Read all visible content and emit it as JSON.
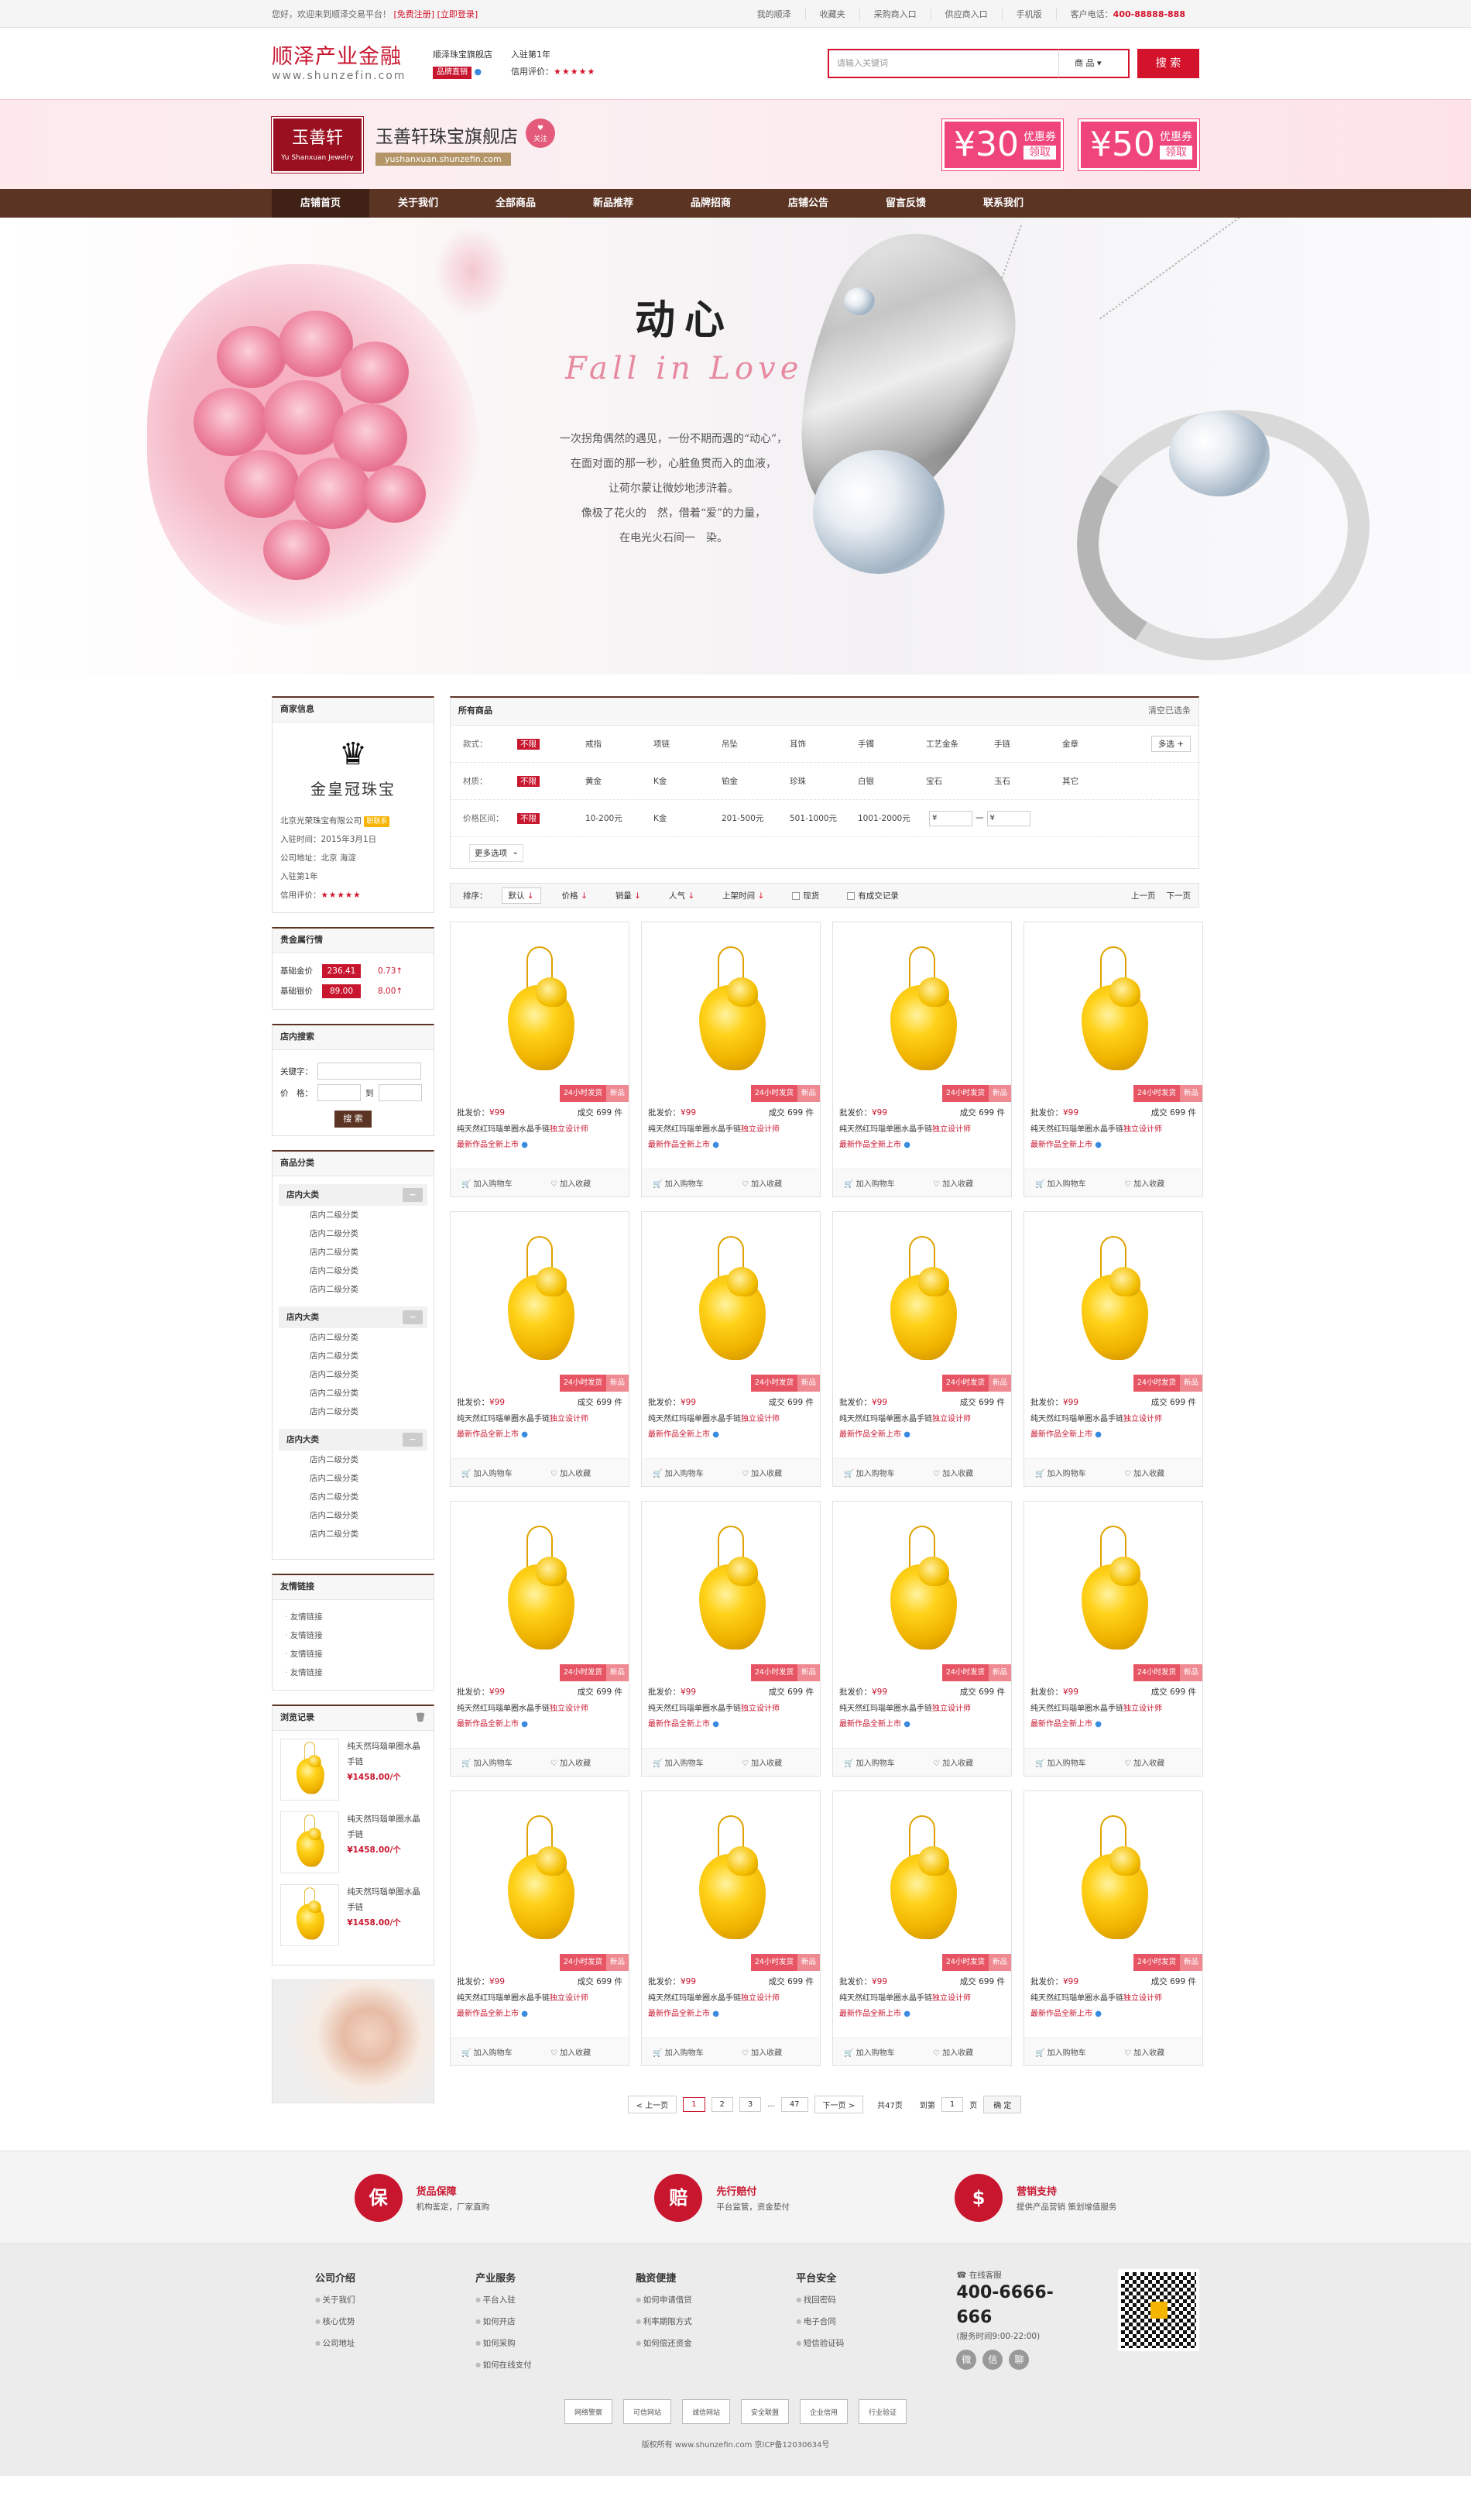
{
  "topbar": {
    "welcome": "您好，欢迎来到顺泽交易平台！",
    "register": "[免费注册]",
    "login": "[立即登录]",
    "links": [
      "我的顺泽",
      "收藏夹",
      "采购商入口",
      "供应商入口",
      "手机版"
    ],
    "phone_label": "客户电话：",
    "phone": "400-88888-888"
  },
  "header": {
    "logo_cn": "顺泽产业金融",
    "logo_en": "www.shunzefin.com",
    "shop_title": "顺泽珠宝旗舰店",
    "shop_badge": "品牌直销",
    "joined": "入驻第1年",
    "rating_label": "信用评价：",
    "stars": "★★★★★",
    "search_placeholder": "请输入关键词",
    "search_type": "商 品",
    "search_button": "搜 索"
  },
  "shop": {
    "logo_cn": "玉善轩",
    "logo_en": "Yu Shanxuan Jewelry",
    "name": "玉善轩珠宝旗舰店",
    "url": "yushanxuan.shunzefin.com",
    "follow": "关注",
    "coupons": [
      {
        "amount": "¥30",
        "label": "优惠券",
        "get": "领取"
      },
      {
        "amount": "¥50",
        "label": "优惠券",
        "get": "领取"
      }
    ]
  },
  "nav": [
    "店铺首页",
    "关于我们",
    "全部商品",
    "新品推荐",
    "品牌招商",
    "店铺公告",
    "留言反馈",
    "联系我们"
  ],
  "hero": {
    "title": "动心",
    "subtitle": "Fall in Love",
    "poem": [
      "一次拐角偶然的遇见，一份不期而遇的“动心”，",
      "在面对面的那一秒，心脏鱼贯而入的血液，",
      "让荷尔蒙让微妙地涉浒着。",
      "像极了花火的　然，借着“爱”的力量，",
      "在电光火石间一　染。"
    ]
  },
  "merchant": {
    "title": "商家信息",
    "brand": "金皇冠珠宝",
    "company": "北京光荣珠宝有限公司",
    "tag": "职联系",
    "joined_date": "入驻时间：2015年3月1日",
    "address": "公司地址：北京 海淀",
    "years": "入驻第1年",
    "rating_label": "信用评价：",
    "stars": "★★★★★"
  },
  "metals": {
    "title": "贵金属行情",
    "rows": [
      {
        "label": "基础金价",
        "value": "236.41",
        "delta": "0.73↑"
      },
      {
        "label": "基础银价",
        "value": "89.00",
        "delta": "8.00↑"
      }
    ]
  },
  "store_search": {
    "title": "店内搜索",
    "keyword_label": "关键字：",
    "price_label": "价　格：",
    "to": "到",
    "button": "搜 索"
  },
  "categories": {
    "title": "商品分类",
    "groups": [
      {
        "name": "店内大类",
        "items": [
          "店内二级分类",
          "店内二级分类",
          "店内二级分类",
          "店内二级分类",
          "店内二级分类"
        ]
      },
      {
        "name": "店内大类",
        "items": [
          "店内二级分类",
          "店内二级分类",
          "店内二级分类",
          "店内二级分类",
          "店内二级分类"
        ]
      },
      {
        "name": "店内大类",
        "items": [
          "店内二级分类",
          "店内二级分类",
          "店内二级分类",
          "店内二级分类",
          "店内二级分类"
        ]
      }
    ]
  },
  "friend_links": {
    "title": "友情链接",
    "items": [
      "友情链接",
      "友情链接",
      "友情链接",
      "友情链接"
    ]
  },
  "history": {
    "title": "浏览记录",
    "items": [
      {
        "name": "纯天然玛瑙单圈水晶手链",
        "price": "¥1458.00/个"
      },
      {
        "name": "纯天然玛瑙单圈水晶手链",
        "price": "¥1458.00/个"
      },
      {
        "name": "纯天然玛瑙单圈水晶手链",
        "price": "¥1458.00/个"
      }
    ]
  },
  "filter": {
    "title": "所有商品",
    "clear": "清空已选条",
    "rows": [
      {
        "label": "款式：",
        "options": [
          "不限",
          "戒指",
          "项链",
          "吊坠",
          "耳饰",
          "手镯",
          "工艺金条",
          "手链",
          "金章"
        ],
        "more": "多选 +"
      },
      {
        "label": "材质：",
        "options": [
          "不限",
          "黄金",
          "K金",
          "铂金",
          "珍珠",
          "白银",
          "宝石",
          "玉石",
          "其它"
        ]
      },
      {
        "label": "价格区间：",
        "options": [
          "不限",
          "10-200元",
          "K金",
          "201-500元",
          "501-1000元",
          "1001-2000元"
        ],
        "price_from": "¥",
        "price_to": "¥",
        "dash": "一"
      }
    ],
    "more_options": "更多选项"
  },
  "sort": {
    "label": "排序：",
    "items": [
      "默认",
      "价格",
      "销量",
      "人气",
      "上架时间"
    ],
    "arrows": [
      "↓",
      "↓",
      "↓",
      "↓",
      "↓"
    ],
    "check1": "现货",
    "check2": "有成交记录",
    "prev": "上一页",
    "next": "下一页"
  },
  "products": {
    "count": 16,
    "price_label": "批发价：",
    "price": "¥99",
    "sold": "成交 699 件",
    "promo1": "24小时发货",
    "promo2": "新品",
    "desc": "纯天然红玛瑙单圈水晶手链",
    "desc_em": "独立设计师",
    "desc2": "最新作品全新上市",
    "add_cart": "加入购物车",
    "favorite": "加入收藏"
  },
  "pager": {
    "prev": "< 上一页",
    "pages": [
      "1",
      "2",
      "3",
      "...",
      "47"
    ],
    "next": "下一页 >",
    "total": "共47页",
    "goto": "到第",
    "page_input": "1",
    "page_unit": "页",
    "ok": "确 定"
  },
  "guarantee": [
    {
      "icon": "保",
      "title": "货品保障",
      "desc": "机构鉴定，厂家直购"
    },
    {
      "icon": "赔",
      "title": "先行赔付",
      "desc": "平台监管，资金垫付"
    },
    {
      "icon": "$",
      "title": "营销支持",
      "desc": "提供产品营销 策划增值服务"
    }
  ],
  "footer": {
    "cols": [
      {
        "title": "公司介绍",
        "items": [
          "关于我们",
          "核心优势",
          "公司地址"
        ]
      },
      {
        "title": "产业服务",
        "items": [
          "平台入驻",
          "如何开店",
          "如何采购",
          "如何在线支付"
        ]
      },
      {
        "title": "融资便捷",
        "items": [
          "如何申请借贷",
          "利率期限方式",
          "如何偿还资金"
        ]
      },
      {
        "title": "平台安全",
        "items": [
          "找回密码",
          "电子合同",
          "短信验证码"
        ]
      }
    ],
    "service_label": "在线客服",
    "tel": "400-6666-666",
    "hours": "(服务时间9:00-22:00)",
    "certs": [
      "网络警察",
      "可信网站",
      "诚信网站",
      "安全联盟",
      "企业信用",
      "行业验证"
    ],
    "copyright": "版权所有 www.shunzefin.com 京ICP备12030634号"
  }
}
